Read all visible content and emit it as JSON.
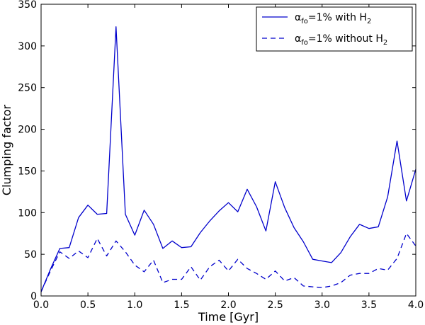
{
  "chart_data": {
    "type": "line",
    "title": "",
    "xlabel": "Time [Gyr]",
    "ylabel": "Clumping factor",
    "xlim": [
      0.0,
      4.0
    ],
    "ylim": [
      0,
      350
    ],
    "xticks": [
      0.0,
      0.5,
      1.0,
      1.5,
      2.0,
      2.5,
      3.0,
      3.5,
      4.0
    ],
    "xtick_labels": [
      "0.0",
      "0.5",
      "1.0",
      "1.5",
      "2.0",
      "2.5",
      "3.0",
      "3.5",
      "4.0"
    ],
    "yticks": [
      0,
      50,
      100,
      150,
      200,
      250,
      300,
      350
    ],
    "ytick_labels": [
      "0",
      "50",
      "100",
      "150",
      "200",
      "250",
      "300",
      "350"
    ],
    "grid": false,
    "legend_position": "top-right",
    "series": [
      {
        "name_main": "α",
        "name_sub": "fo",
        "name_rest": "=1% with H",
        "name_sub2": "2",
        "color": "#0000cc",
        "style": "solid",
        "x": [
          0.0,
          0.1,
          0.2,
          0.3,
          0.4,
          0.5,
          0.6,
          0.7,
          0.8,
          0.9,
          1.0,
          1.1,
          1.2,
          1.3,
          1.4,
          1.5,
          1.6,
          1.7,
          1.8,
          1.9,
          2.0,
          2.1,
          2.2,
          2.3,
          2.4,
          2.5,
          2.6,
          2.7,
          2.8,
          2.9,
          3.0,
          3.1,
          3.2,
          3.3,
          3.4,
          3.5,
          3.6,
          3.7,
          3.8,
          3.9,
          4.0
        ],
        "y": [
          5,
          32,
          57,
          58,
          94,
          109,
          98,
          99,
          323,
          98,
          73,
          103,
          86,
          57,
          66,
          58,
          59,
          76,
          90,
          102,
          112,
          101,
          128,
          107,
          78,
          137,
          106,
          82,
          65,
          44,
          42,
          40,
          52,
          71,
          86,
          81,
          83,
          119,
          186,
          114,
          152
        ]
      },
      {
        "name_main": "α",
        "name_sub": "fo",
        "name_rest": "=1% without H",
        "name_sub2": "2",
        "color": "#0000cc",
        "style": "dashed",
        "x": [
          0.0,
          0.1,
          0.2,
          0.3,
          0.4,
          0.5,
          0.6,
          0.7,
          0.8,
          0.9,
          1.0,
          1.1,
          1.2,
          1.3,
          1.4,
          1.5,
          1.6,
          1.7,
          1.8,
          1.9,
          2.0,
          2.1,
          2.2,
          2.3,
          2.4,
          2.5,
          2.6,
          2.7,
          2.8,
          2.9,
          3.0,
          3.1,
          3.2,
          3.3,
          3.4,
          3.5,
          3.6,
          3.7,
          3.8,
          3.9,
          4.0
        ],
        "y": [
          5,
          30,
          53,
          45,
          54,
          46,
          69,
          48,
          66,
          53,
          37,
          29,
          43,
          16,
          20,
          20,
          35,
          19,
          35,
          43,
          30,
          44,
          33,
          27,
          20,
          30,
          18,
          22,
          12,
          11,
          10,
          12,
          16,
          25,
          27,
          27,
          33,
          31,
          45,
          75,
          60
        ]
      }
    ]
  }
}
